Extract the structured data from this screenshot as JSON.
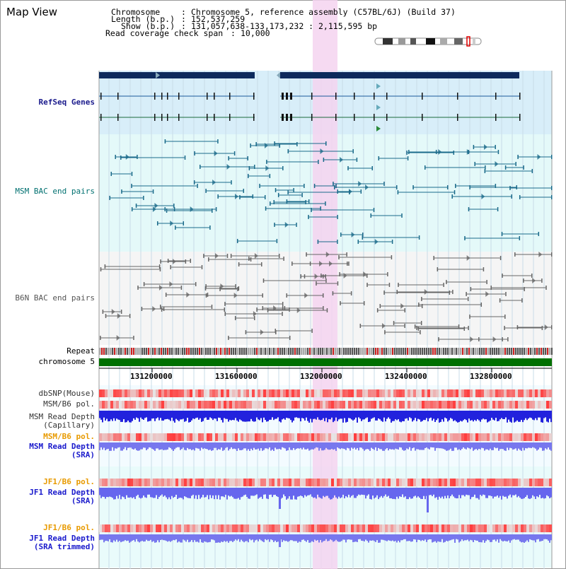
{
  "window": {
    "title": "Map View"
  },
  "info": {
    "chromosome_key": "Chromosome",
    "chromosome_val": "Chromosome 5, reference assembly (C57BL/6J) (Build 37)",
    "length_key": "Length (b.p.)",
    "length_val": "152,537,259",
    "show_key": "Show (b.p.)",
    "show_val": "131,057,638-133,173,232 : 2,115,595 bp",
    "coverage_key": "Read coverage check span",
    "coverage_val": "10,000"
  },
  "tracks": {
    "refseq": "RefSeq Genes",
    "msm_bac": "MSM BAC end pairs",
    "b6n_bac": "B6N BAC end pairs",
    "repeat": "Repeat",
    "chromosome": "chromosome 5",
    "dbsnp": "dbSNP(Mouse)",
    "msm_b6_pol": "MSM/B6 pol.",
    "msm_depth_cap_1": "MSM Read Depth",
    "msm_depth_cap_2": "(Capillary)",
    "msm_b6_pol_2": "MSM/B6 pol.",
    "msm_depth_sra_1": "MSM Read Depth",
    "msm_depth_sra_2": "(SRA)",
    "jf1_b6_pol": "JF1/B6 pol.",
    "jf1_depth_sra_1": "JF1 Read Depth",
    "jf1_depth_sra_2": "(SRA)",
    "jf1_b6_pol_2": "JF1/B6 pol.",
    "jf1_trim_1": "JF1 Read Depth",
    "jf1_trim_2": "(SRA trimmed)"
  },
  "axis": {
    "ticks": [
      "131200000",
      "131600000",
      "132000000",
      "132400000",
      "132800000"
    ]
  },
  "colors": {
    "refseq_bg": "#d8eef9",
    "msm_bg": "#e4f9f9",
    "b6n_bg": "#f5f5f5",
    "highlight": "#f4d4f0",
    "refseq_label": "#1a1a8c",
    "msm_label": "#007070",
    "b6n_label": "#555555",
    "pol_orange": "#e89a00",
    "depth_blue": "#1a1acc",
    "chrom_green": "#007000",
    "gene_navy": "#0d2a5c"
  }
}
